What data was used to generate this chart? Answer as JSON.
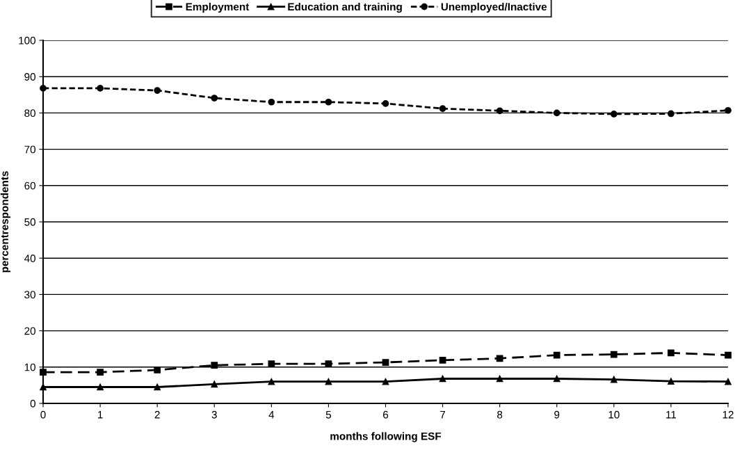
{
  "chart_data": {
    "type": "line",
    "xlabel": "months following ESF",
    "ylabel": "percentrespondents",
    "x": [
      0,
      1,
      2,
      3,
      4,
      5,
      6,
      7,
      8,
      9,
      10,
      11,
      12
    ],
    "series": [
      {
        "name": "Employment",
        "color": "#000000",
        "marker": "square",
        "line_style": "dashed",
        "values": [
          8.6,
          8.6,
          9.2,
          10.5,
          10.9,
          10.9,
          11.3,
          11.9,
          12.4,
          13.3,
          13.5,
          13.9,
          13.3
        ]
      },
      {
        "name": "Education and training",
        "color": "#000000",
        "marker": "triangle",
        "line_style": "solid",
        "values": [
          4.5,
          4.5,
          4.5,
          5.3,
          6.0,
          6.0,
          6.0,
          6.8,
          6.8,
          6.8,
          6.6,
          6.1,
          6.0
        ]
      },
      {
        "name": "Unemployed/Inactive",
        "color": "#000000",
        "marker": "circle",
        "line_style": "dotted",
        "values": [
          86.8,
          86.8,
          86.2,
          84.1,
          83.0,
          83.0,
          82.6,
          81.2,
          80.6,
          80.0,
          79.7,
          79.8,
          80.7
        ]
      }
    ],
    "xlim": [
      0,
      12
    ],
    "xticks": [
      0,
      1,
      2,
      3,
      4,
      5,
      6,
      7,
      8,
      9,
      10,
      11,
      12
    ],
    "ylim": [
      0,
      100
    ],
    "yticks": [
      0,
      10,
      20,
      30,
      40,
      50,
      60,
      70,
      80,
      90,
      100
    ],
    "grid": "y",
    "legend": "top"
  }
}
